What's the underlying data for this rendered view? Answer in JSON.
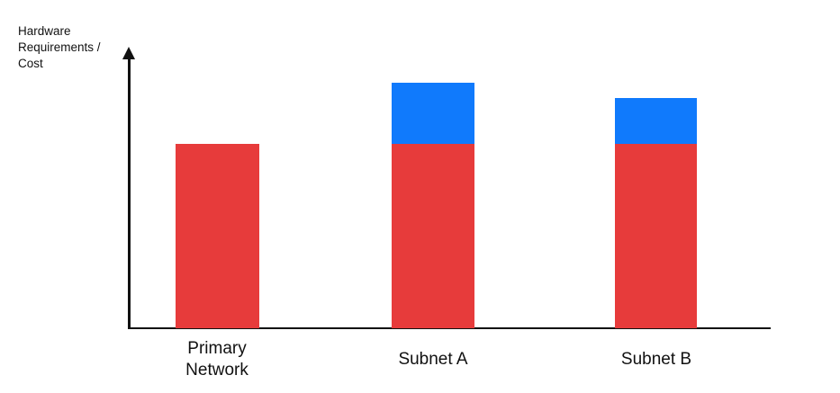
{
  "chart": {
    "y_axis_label": "Hardware Requirements / Cost"
  },
  "colors": {
    "red_segment": "#E73B3B",
    "blue_segment": "#107AFC",
    "axis": "#111111",
    "text": "#111111",
    "background": "#FFFFFF"
  },
  "chart_data": {
    "type": "bar",
    "stacked": true,
    "title": "",
    "xlabel": "",
    "ylabel": "Hardware Requirements / Cost",
    "categories": [
      "Primary Network",
      "Subnet A",
      "Subnet B"
    ],
    "series": [
      {
        "name": "red-base-segment",
        "color": "#E73B3B",
        "values": [
          1.0,
          1.0,
          1.0
        ]
      },
      {
        "name": "blue-stacked-segment",
        "color": "#107AFC",
        "values": [
          0,
          0.33,
          0.25
        ]
      }
    ],
    "value_units": "relative (y-axis has no numeric scale; red base bar = 1.0)",
    "legend": "none",
    "grid": false,
    "y_axis_arrow": true
  }
}
